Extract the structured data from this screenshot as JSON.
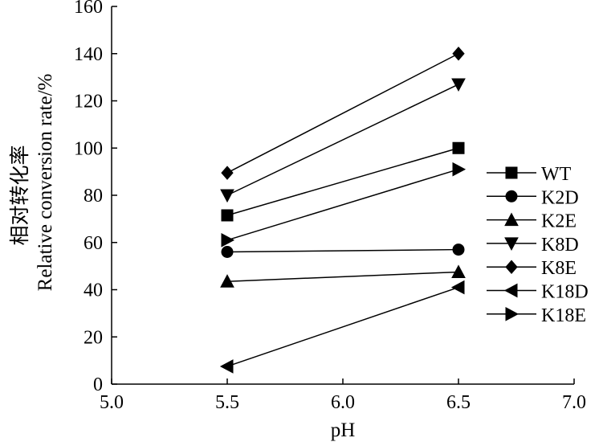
{
  "chart_data": {
    "type": "line",
    "title": "",
    "xlabel": "pH",
    "ylabel_cn": "相对转化率",
    "ylabel_en": "Relative conversion rate/%",
    "xlim": [
      5.0,
      7.0
    ],
    "ylim": [
      0,
      160
    ],
    "xticks": [
      "5.0",
      "5.5",
      "6.0",
      "6.5",
      "7.0"
    ],
    "yticks": [
      "0",
      "20",
      "40",
      "60",
      "80",
      "100",
      "120",
      "140",
      "160"
    ],
    "grid": false,
    "legend_position": "right",
    "x": [
      5.5,
      6.5
    ],
    "series": [
      {
        "name": "WT",
        "marker": "square",
        "values": [
          71.5,
          100
        ]
      },
      {
        "name": "K2D",
        "marker": "circle",
        "values": [
          56,
          57
        ]
      },
      {
        "name": "K2E",
        "marker": "triangle-up",
        "values": [
          43.5,
          47.5
        ]
      },
      {
        "name": "K8D",
        "marker": "triangle-down",
        "values": [
          80,
          127
        ]
      },
      {
        "name": "K8E",
        "marker": "diamond",
        "values": [
          89.5,
          140
        ]
      },
      {
        "name": "K18D",
        "marker": "triangle-left",
        "values": [
          7.5,
          41
        ]
      },
      {
        "name": "K18E",
        "marker": "triangle-right",
        "values": [
          61,
          91
        ]
      }
    ]
  }
}
